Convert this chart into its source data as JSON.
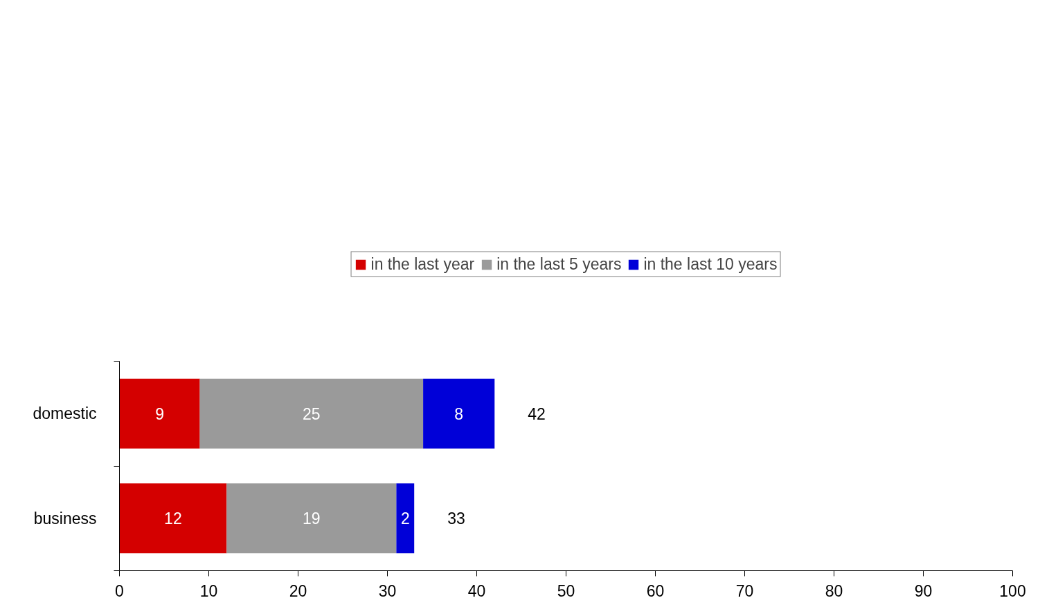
{
  "chart_data": {
    "type": "bar",
    "orientation": "horizontal",
    "stacked": true,
    "categories": [
      "domestic",
      "business"
    ],
    "series": [
      {
        "name": "in the last year",
        "color": "#d40000",
        "values": [
          9,
          12
        ]
      },
      {
        "name": "in the last 5 years",
        "color": "#9a9a9a",
        "values": [
          25,
          19
        ]
      },
      {
        "name": "in the last 10 years",
        "color": "#0000d8",
        "values": [
          8,
          2
        ]
      }
    ],
    "data_labels": true,
    "totals": [
      "42",
      "33"
    ],
    "xlim": [
      0,
      100
    ],
    "xticks": [
      0,
      10,
      20,
      30,
      40,
      50,
      60,
      70,
      80,
      90,
      100
    ],
    "grid": false,
    "legend": "top"
  }
}
